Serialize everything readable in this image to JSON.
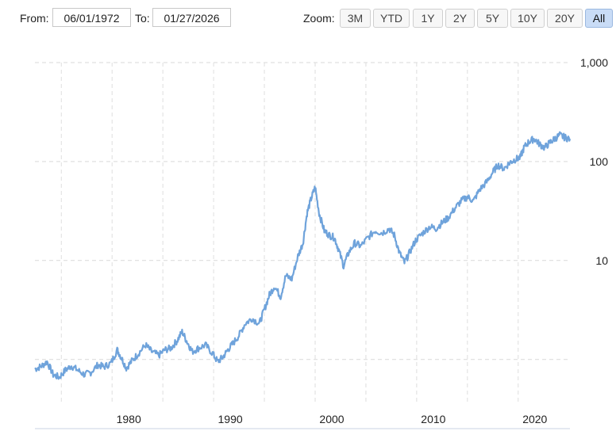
{
  "toolbar": {
    "from_label": "From:",
    "from_value": "06/01/1972",
    "to_label": "To:",
    "to_value": "01/27/2026",
    "zoom_label": "Zoom:",
    "zoom_buttons": [
      "3M",
      "YTD",
      "1Y",
      "2Y",
      "5Y",
      "10Y",
      "20Y",
      "All"
    ],
    "active_zoom": "All"
  },
  "chart_data": {
    "type": "line",
    "title": "",
    "xlabel": "",
    "ylabel": "",
    "y_scale": "log",
    "ylim": [
      0.2,
      1000
    ],
    "xlim": [
      1972.4,
      2025.1
    ],
    "x_ticks": [
      "1980",
      "1990",
      "2000",
      "2010",
      "2020"
    ],
    "y_ticks": [
      "1,000",
      "100",
      "10"
    ],
    "grid": true,
    "line_color": "#6fa3db",
    "series": [
      {
        "name": "",
        "points": [
          [
            1972.4,
            0.8
          ],
          [
            1973.0,
            0.85
          ],
          [
            1973.6,
            0.95
          ],
          [
            1974.2,
            0.7
          ],
          [
            1974.8,
            0.66
          ],
          [
            1975.4,
            0.78
          ],
          [
            1976.0,
            0.86
          ],
          [
            1976.6,
            0.78
          ],
          [
            1977.3,
            0.7
          ],
          [
            1977.9,
            0.74
          ],
          [
            1978.6,
            0.88
          ],
          [
            1979.2,
            0.84
          ],
          [
            1979.9,
            0.92
          ],
          [
            1980.5,
            1.25
          ],
          [
            1980.9,
            1.05
          ],
          [
            1981.4,
            0.82
          ],
          [
            1982.0,
            0.98
          ],
          [
            1982.6,
            1.15
          ],
          [
            1983.3,
            1.4
          ],
          [
            1983.9,
            1.2
          ],
          [
            1984.6,
            1.1
          ],
          [
            1985.2,
            1.25
          ],
          [
            1985.8,
            1.3
          ],
          [
            1986.4,
            1.55
          ],
          [
            1986.9,
            1.9
          ],
          [
            1987.4,
            1.5
          ],
          [
            1987.9,
            1.2
          ],
          [
            1988.5,
            1.3
          ],
          [
            1989.2,
            1.4
          ],
          [
            1989.9,
            1.15
          ],
          [
            1990.4,
            0.95
          ],
          [
            1990.9,
            1.05
          ],
          [
            1991.4,
            1.25
          ],
          [
            1991.9,
            1.45
          ],
          [
            1992.5,
            1.75
          ],
          [
            1993.1,
            2.3
          ],
          [
            1993.8,
            2.6
          ],
          [
            1994.5,
            2.3
          ],
          [
            1995.0,
            3.2
          ],
          [
            1995.5,
            4.5
          ],
          [
            1996.0,
            5.5
          ],
          [
            1996.6,
            4.3
          ],
          [
            1997.1,
            7.0
          ],
          [
            1997.7,
            6.5
          ],
          [
            1998.3,
            11.0
          ],
          [
            1998.8,
            15.0
          ],
          [
            1999.2,
            30.0
          ],
          [
            1999.6,
            42.0
          ],
          [
            2000.0,
            55.0
          ],
          [
            2000.4,
            30.0
          ],
          [
            2000.9,
            20.0
          ],
          [
            2001.4,
            18.0
          ],
          [
            2001.9,
            17.0
          ],
          [
            2002.3,
            13.0
          ],
          [
            2002.8,
            8.8
          ],
          [
            2003.3,
            12.0
          ],
          [
            2003.9,
            15.0
          ],
          [
            2004.5,
            14.0
          ],
          [
            2005.2,
            17.0
          ],
          [
            2005.9,
            20.0
          ],
          [
            2006.6,
            19.0
          ],
          [
            2007.3,
            21.0
          ],
          [
            2007.8,
            18.0
          ],
          [
            2008.3,
            12.0
          ],
          [
            2008.8,
            9.5
          ],
          [
            2009.3,
            12.0
          ],
          [
            2009.9,
            16.0
          ],
          [
            2010.6,
            19.0
          ],
          [
            2011.3,
            22.0
          ],
          [
            2011.9,
            21.0
          ],
          [
            2012.5,
            24.0
          ],
          [
            2013.1,
            27.0
          ],
          [
            2013.8,
            34.0
          ],
          [
            2014.4,
            40.0
          ],
          [
            2015.0,
            44.0
          ],
          [
            2015.6,
            40.0
          ],
          [
            2016.2,
            52.0
          ],
          [
            2016.9,
            62.0
          ],
          [
            2017.5,
            78.0
          ],
          [
            2018.0,
            92.0
          ],
          [
            2018.6,
            85.0
          ],
          [
            2019.2,
            98.0
          ],
          [
            2019.7,
            105.0
          ],
          [
            2020.2,
            110.0
          ],
          [
            2020.6,
            140.0
          ],
          [
            2021.1,
            160.0
          ],
          [
            2021.6,
            170.0
          ],
          [
            2022.1,
            150.0
          ],
          [
            2022.6,
            138.0
          ],
          [
            2023.1,
            155.0
          ],
          [
            2023.6,
            170.0
          ],
          [
            2024.1,
            185.0
          ],
          [
            2024.6,
            175.0
          ],
          [
            2025.1,
            170.0
          ]
        ]
      }
    ]
  }
}
